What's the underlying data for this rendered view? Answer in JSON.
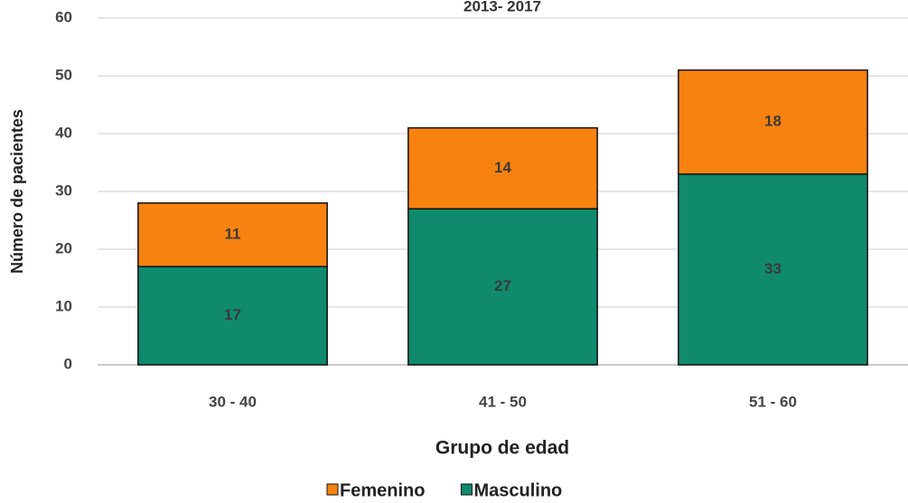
{
  "chart_data": {
    "type": "stacked_bar",
    "title": "2013- 2017",
    "x_label": "Grupo de edad",
    "y_label": "Número de pacientes",
    "categories": [
      "30 - 40",
      "41 - 50",
      "51 - 60"
    ],
    "series": [
      {
        "name": "Masculino",
        "color": "#0f8a6c",
        "values": [
          17,
          27,
          33
        ]
      },
      {
        "name": "Femenino",
        "color": "#f7820f",
        "values": [
          11,
          14,
          18
        ]
      }
    ],
    "legend_order": [
      "Femenino",
      "Masculino"
    ],
    "ylim": [
      0,
      60
    ],
    "yticks": [
      0,
      10,
      20,
      30,
      40,
      50,
      60
    ],
    "grid": true,
    "legend": "bottom"
  }
}
